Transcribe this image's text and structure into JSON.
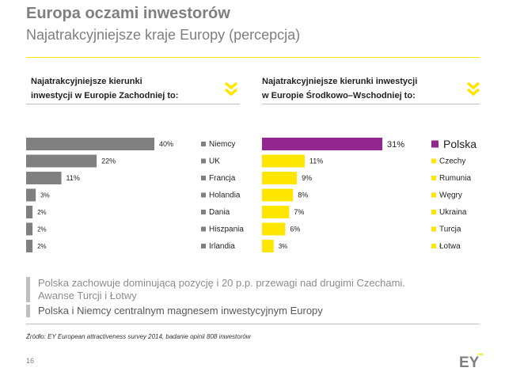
{
  "header": {
    "title": "Europa oczami inwestorów",
    "subtitle": "Najatrakcyjniejsze kraje Europy (percepcja)"
  },
  "colors": {
    "accent": "#ffe600",
    "gray_bar": "#808080",
    "highlight": "#91278f",
    "text_gray": "#7f7f7f"
  },
  "left_panel": {
    "heading_line1": "Najatrakcyjniejsze kierunki",
    "heading_line2": "inwestycji w Europie Zachodniej to:",
    "icon": "double-chevron-down-icon"
  },
  "right_panel": {
    "heading_line1": "Najatrakcyjniejsze kierunki inwestycji",
    "heading_line2": "w Europie Środkowo–Wschodniej to:",
    "icon": "double-chevron-down-icon"
  },
  "chart_data": [
    {
      "type": "bar",
      "orientation": "horizontal",
      "categories": [
        "Niemcy",
        "UK",
        "Francja",
        "Holandia",
        "Dania",
        "Hiszpania",
        "Irlandia"
      ],
      "values": [
        40,
        22,
        11,
        3,
        2,
        2,
        2
      ],
      "value_labels": [
        "40%",
        "22%",
        "11%",
        "3%",
        "2%",
        "2%",
        "2%"
      ],
      "bar_colors": [
        "#808080",
        "#808080",
        "#808080",
        "#808080",
        "#808080",
        "#808080",
        "#808080"
      ],
      "legend_colors": [
        "#808080",
        "#808080",
        "#808080",
        "#808080",
        "#808080",
        "#808080",
        "#808080"
      ],
      "xlim": [
        0,
        40
      ]
    },
    {
      "type": "bar",
      "orientation": "horizontal",
      "categories": [
        "Polska",
        "Czechy",
        "Rumunia",
        "Węgry",
        "Ukraina",
        "Turcja",
        "Łotwa"
      ],
      "values": [
        31,
        11,
        9,
        8,
        7,
        6,
        3
      ],
      "value_labels": [
        "31%",
        "11%",
        "9%",
        "8%",
        "7%",
        "6%",
        "3%"
      ],
      "bar_colors": [
        "#91278f",
        "#ffe600",
        "#ffe600",
        "#ffe600",
        "#ffe600",
        "#ffe600",
        "#ffe600"
      ],
      "legend_colors": [
        "#91278f",
        "#ffe600",
        "#ffe600",
        "#ffe600",
        "#ffe600",
        "#ffe600",
        "#ffe600"
      ],
      "xlim": [
        0,
        31
      ]
    }
  ],
  "notes": {
    "note1_line1": "Polska zachowuje dominującą pozycję i 20 p.p. przewagi nad drugimi Czechami.",
    "note1_line2": "Awanse Turcji i Łotwy",
    "note2": "Polska i Niemcy centralnym magnesem inwestycyjnym Europy"
  },
  "source": "Źródło: EY European attractiveness survey 2014, badanie opinii 808 inwestorów",
  "page_number": "16",
  "logo_text": "EY"
}
